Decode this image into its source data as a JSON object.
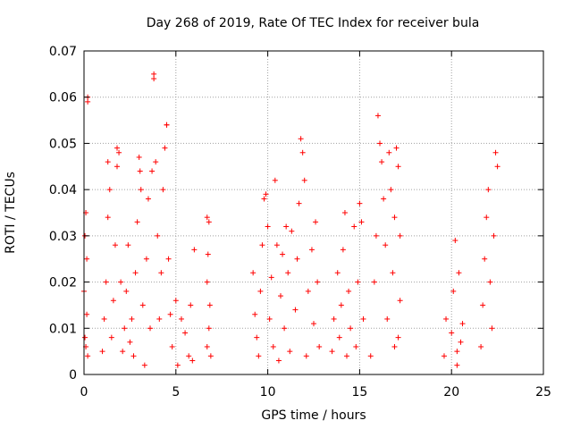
{
  "chart_data": {
    "type": "scatter",
    "title": "Day 268 of 2019, Rate Of TEC Index for receiver bula",
    "xlabel": "GPS time / hours",
    "ylabel": "ROTI / TECUs",
    "xlim": [
      0,
      25
    ],
    "ylim": [
      0,
      0.07
    ],
    "xticks": [
      "0",
      "5",
      "10",
      "15",
      "20",
      "25"
    ],
    "yticks": [
      "0",
      "0.01",
      "0.02",
      "0.03",
      "0.04",
      "0.05",
      "0.06",
      "0.07"
    ],
    "grid": true,
    "marker": "+",
    "marker_color": "#ff0000",
    "series": [
      {
        "points": [
          [
            0.0,
            0.018
          ],
          [
            0.05,
            0.03
          ],
          [
            0.1,
            0.035
          ],
          [
            0.1,
            0.006
          ],
          [
            0.15,
            0.013
          ],
          [
            0.2,
            0.059
          ],
          [
            0.2,
            0.06
          ],
          [
            0.2,
            0.004
          ],
          [
            0.15,
            0.025
          ],
          [
            0.05,
            0.008
          ],
          [
            1.0,
            0.005
          ],
          [
            1.1,
            0.012
          ],
          [
            1.2,
            0.02
          ],
          [
            1.3,
            0.034
          ],
          [
            1.3,
            0.046
          ],
          [
            1.4,
            0.04
          ],
          [
            1.5,
            0.008
          ],
          [
            1.6,
            0.016
          ],
          [
            1.7,
            0.028
          ],
          [
            1.8,
            0.045
          ],
          [
            1.8,
            0.049
          ],
          [
            1.9,
            0.048
          ],
          [
            2.0,
            0.02
          ],
          [
            2.1,
            0.005
          ],
          [
            2.2,
            0.01
          ],
          [
            2.3,
            0.018
          ],
          [
            2.4,
            0.028
          ],
          [
            2.5,
            0.007
          ],
          [
            2.6,
            0.012
          ],
          [
            2.7,
            0.004
          ],
          [
            2.8,
            0.022
          ],
          [
            2.9,
            0.033
          ],
          [
            3.0,
            0.047
          ],
          [
            3.05,
            0.044
          ],
          [
            3.1,
            0.04
          ],
          [
            3.2,
            0.015
          ],
          [
            3.3,
            0.002
          ],
          [
            3.4,
            0.025
          ],
          [
            3.5,
            0.038
          ],
          [
            3.6,
            0.01
          ],
          [
            3.7,
            0.044
          ],
          [
            3.8,
            0.064
          ],
          [
            3.8,
            0.065
          ],
          [
            3.9,
            0.046
          ],
          [
            4.0,
            0.03
          ],
          [
            4.1,
            0.012
          ],
          [
            4.2,
            0.022
          ],
          [
            4.3,
            0.04
          ],
          [
            4.4,
            0.049
          ],
          [
            4.5,
            0.054
          ],
          [
            4.5,
            0.054
          ],
          [
            4.6,
            0.025
          ],
          [
            4.7,
            0.013
          ],
          [
            4.8,
            0.006
          ],
          [
            5.0,
            0.016
          ],
          [
            5.1,
            0.002
          ],
          [
            5.3,
            0.012
          ],
          [
            5.5,
            0.009
          ],
          [
            5.7,
            0.004
          ],
          [
            5.8,
            0.015
          ],
          [
            6.0,
            0.027
          ],
          [
            5.9,
            0.003
          ],
          [
            6.7,
            0.034
          ],
          [
            6.7,
            0.02
          ],
          [
            6.8,
            0.033
          ],
          [
            6.8,
            0.01
          ],
          [
            6.9,
            0.004
          ],
          [
            6.75,
            0.026
          ],
          [
            6.85,
            0.015
          ],
          [
            6.7,
            0.006
          ],
          [
            9.2,
            0.022
          ],
          [
            9.3,
            0.013
          ],
          [
            9.4,
            0.008
          ],
          [
            9.5,
            0.004
          ],
          [
            9.6,
            0.018
          ],
          [
            9.7,
            0.028
          ],
          [
            9.8,
            0.038
          ],
          [
            9.9,
            0.039
          ],
          [
            10.0,
            0.032
          ],
          [
            10.1,
            0.012
          ],
          [
            10.2,
            0.021
          ],
          [
            10.3,
            0.006
          ],
          [
            10.4,
            0.042
          ],
          [
            10.5,
            0.028
          ],
          [
            10.6,
            0.003
          ],
          [
            10.7,
            0.017
          ],
          [
            10.8,
            0.026
          ],
          [
            10.9,
            0.01
          ],
          [
            11.0,
            0.032
          ],
          [
            11.1,
            0.022
          ],
          [
            11.2,
            0.005
          ],
          [
            11.3,
            0.031
          ],
          [
            11.5,
            0.014
          ],
          [
            11.6,
            0.025
          ],
          [
            11.7,
            0.037
          ],
          [
            11.8,
            0.051
          ],
          [
            11.9,
            0.048
          ],
          [
            12.0,
            0.042
          ],
          [
            12.1,
            0.004
          ],
          [
            12.2,
            0.018
          ],
          [
            12.4,
            0.027
          ],
          [
            12.5,
            0.011
          ],
          [
            12.6,
            0.033
          ],
          [
            12.7,
            0.02
          ],
          [
            12.8,
            0.006
          ],
          [
            13.5,
            0.005
          ],
          [
            13.6,
            0.012
          ],
          [
            13.8,
            0.022
          ],
          [
            13.9,
            0.008
          ],
          [
            14.0,
            0.015
          ],
          [
            14.1,
            0.027
          ],
          [
            14.2,
            0.035
          ],
          [
            14.3,
            0.004
          ],
          [
            14.4,
            0.018
          ],
          [
            14.5,
            0.01
          ],
          [
            14.7,
            0.032
          ],
          [
            14.8,
            0.006
          ],
          [
            14.9,
            0.02
          ],
          [
            15.0,
            0.037
          ],
          [
            15.1,
            0.033
          ],
          [
            15.2,
            0.012
          ],
          [
            15.6,
            0.004
          ],
          [
            15.8,
            0.02
          ],
          [
            15.9,
            0.03
          ],
          [
            16.0,
            0.056
          ],
          [
            16.1,
            0.05
          ],
          [
            16.2,
            0.046
          ],
          [
            16.3,
            0.038
          ],
          [
            16.4,
            0.028
          ],
          [
            16.5,
            0.012
          ],
          [
            16.6,
            0.048
          ],
          [
            16.7,
            0.04
          ],
          [
            16.8,
            0.022
          ],
          [
            16.9,
            0.006
          ],
          [
            17.0,
            0.049
          ],
          [
            17.1,
            0.045
          ],
          [
            17.2,
            0.03
          ],
          [
            17.2,
            0.016
          ],
          [
            17.1,
            0.008
          ],
          [
            16.9,
            0.034
          ],
          [
            19.6,
            0.004
          ],
          [
            19.7,
            0.012
          ],
          [
            20.0,
            0.009
          ],
          [
            20.1,
            0.018
          ],
          [
            20.2,
            0.029
          ],
          [
            20.3,
            0.002
          ],
          [
            20.4,
            0.022
          ],
          [
            20.5,
            0.007
          ],
          [
            20.6,
            0.011
          ],
          [
            20.3,
            0.005
          ],
          [
            21.6,
            0.006
          ],
          [
            21.7,
            0.015
          ],
          [
            21.8,
            0.025
          ],
          [
            21.9,
            0.034
          ],
          [
            22.0,
            0.04
          ],
          [
            22.1,
            0.02
          ],
          [
            22.2,
            0.01
          ],
          [
            22.3,
            0.03
          ],
          [
            22.4,
            0.048
          ],
          [
            22.5,
            0.045
          ]
        ]
      }
    ]
  }
}
